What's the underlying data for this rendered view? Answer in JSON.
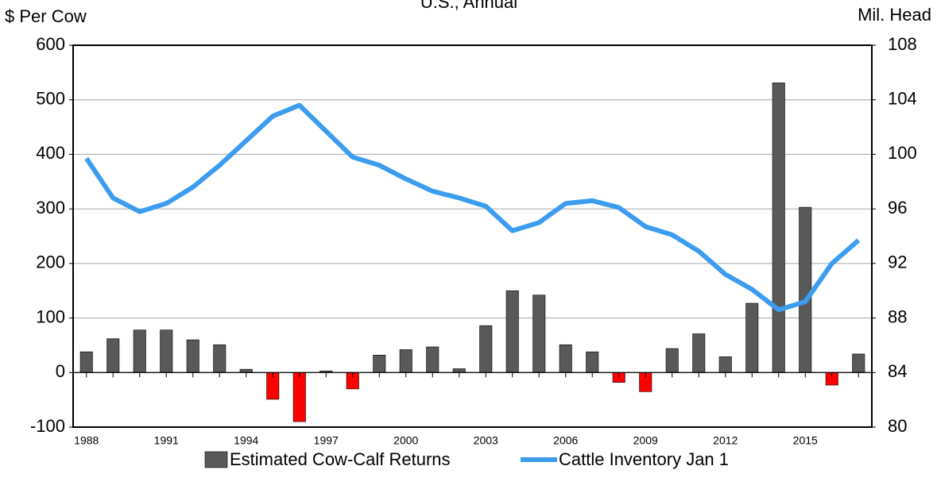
{
  "chart_data": {
    "type": "bar_line",
    "title": "U.S., Annual",
    "y_label": "$ Per Cow",
    "y2_label": "Mil. Head",
    "x": [
      1988,
      1989,
      1990,
      1991,
      1992,
      1993,
      1994,
      1995,
      1996,
      1997,
      1998,
      1999,
      2000,
      2001,
      2002,
      2003,
      2004,
      2005,
      2006,
      2007,
      2008,
      2009,
      2010,
      2011,
      2012,
      2013,
      2014,
      2015,
      2016,
      2017
    ],
    "xlim": [
      1987.5,
      2017.5
    ],
    "xticks": [
      1988,
      1991,
      1994,
      1997,
      2000,
      2003,
      2006,
      2009,
      2012,
      2015
    ],
    "ylim": [
      -100,
      600
    ],
    "yticks": [
      -100,
      0,
      100,
      200,
      300,
      400,
      500,
      600
    ],
    "y2lim": [
      80,
      108
    ],
    "y2ticks": [
      80,
      84,
      88,
      92,
      96,
      100,
      104,
      108
    ],
    "grid": true,
    "legend": "bottom",
    "series": [
      {
        "name": "Estimated Cow-Calf Returns",
        "type": "bar",
        "color": "#595959",
        "negative_color": "#ff0000",
        "values": [
          38,
          62,
          78,
          78,
          60,
          51,
          6,
          -49,
          -90,
          3,
          -30,
          32,
          42,
          47,
          7,
          86,
          150,
          142,
          51,
          38,
          -18,
          -35,
          44,
          71,
          29,
          127,
          531,
          303,
          -23,
          34
        ]
      },
      {
        "name": "Cattle Inventory Jan 1",
        "type": "line",
        "axis": "y2",
        "color": "#3c9cf0",
        "values": [
          99.7,
          96.8,
          95.8,
          96.4,
          97.6,
          99.2,
          101.0,
          102.8,
          103.6,
          101.7,
          99.8,
          99.2,
          98.2,
          97.3,
          96.8,
          96.2,
          94.4,
          95.0,
          96.4,
          96.6,
          96.1,
          94.7,
          94.1,
          92.9,
          91.2,
          90.1,
          88.6,
          89.2,
          92.0,
          93.7
        ]
      }
    ]
  }
}
